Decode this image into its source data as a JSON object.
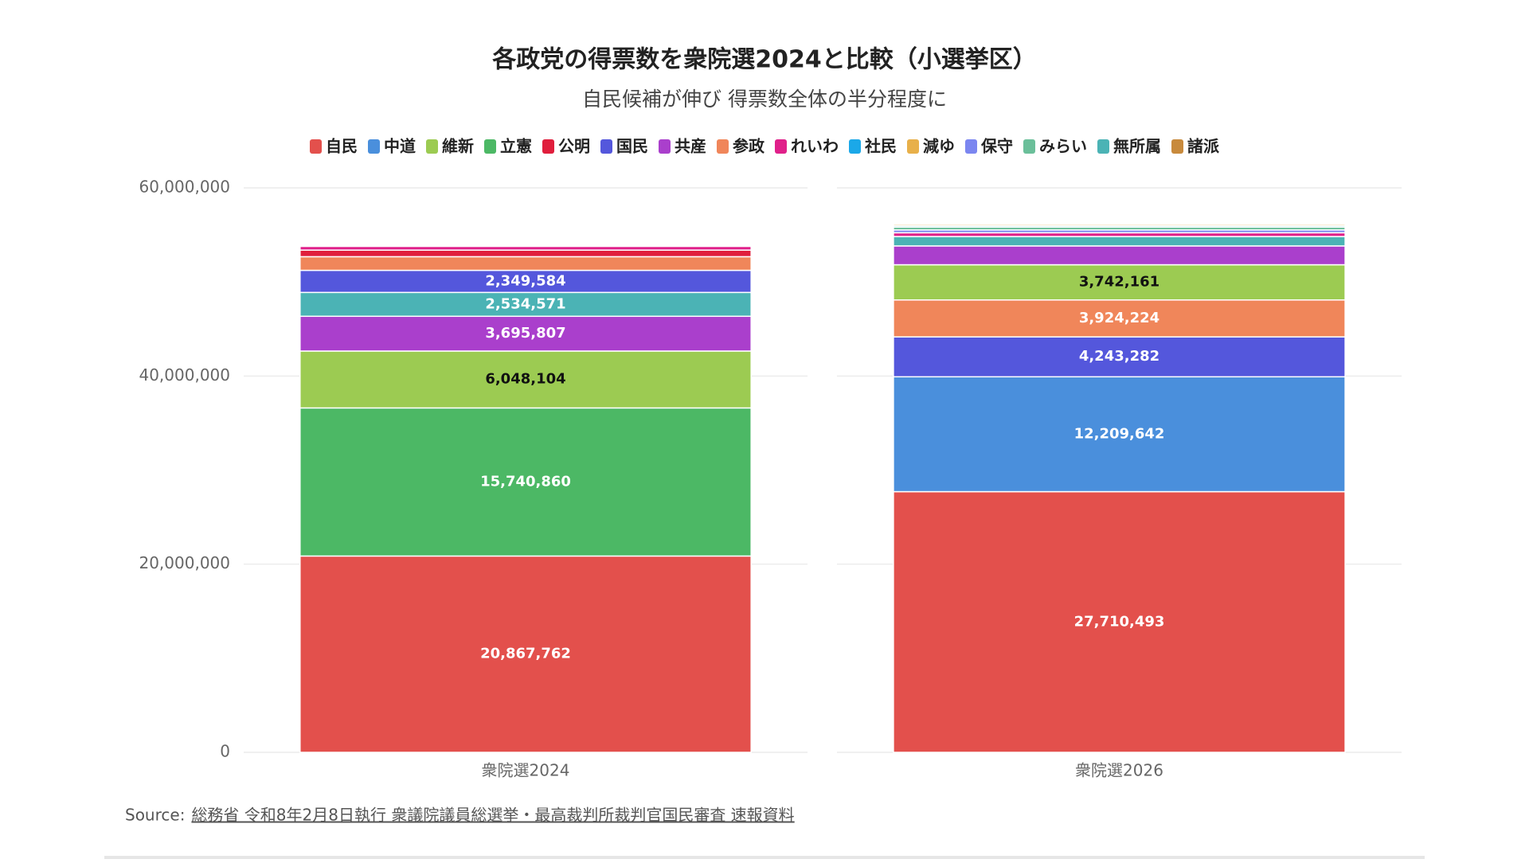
{
  "chart_data": {
    "type": "stacked_bar",
    "title": "各政党の得票数を衆院選2024と比較（小選挙区）",
    "subtitle": "自民候補が伸び 得票数全体の半分程度に",
    "categories": [
      "衆院選2024",
      "衆院選2026"
    ],
    "series": [
      {
        "name": "自民",
        "color": "#e3504c",
        "values": [
          20867762,
          27710493
        ],
        "value_labels": [
          "20,867,762",
          "27,710,493"
        ]
      },
      {
        "name": "中道",
        "color": "#4a8fdc",
        "values": [
          null,
          12209642
        ],
        "value_labels": [
          null,
          "12,209,642"
        ]
      },
      {
        "name": "維新",
        "color": "#9ccb52",
        "values": [
          6048104,
          3742161
        ],
        "value_labels": [
          "6,048,104",
          "3,742,161"
        ]
      },
      {
        "name": "立憲",
        "color": "#4cb865",
        "values": [
          15740860,
          null
        ],
        "value_labels": [
          "15,740,860",
          null
        ]
      },
      {
        "name": "公明",
        "color": "#e01e3c",
        "values": [
          700000,
          null
        ]
      },
      {
        "name": "国民",
        "color": "#5457dc",
        "values": [
          2349584,
          4243282
        ],
        "value_labels": [
          "2,349,584",
          "4,243,282"
        ]
      },
      {
        "name": "共産",
        "color": "#aa3fcc",
        "values": [
          3695807,
          2000000
        ],
        "value_labels": [
          "3,695,807",
          null
        ]
      },
      {
        "name": "参政",
        "color": "#f0865a",
        "values": [
          1450000,
          3924224
        ],
        "value_labels": [
          null,
          "3,924,224"
        ]
      },
      {
        "name": "れいわ",
        "color": "#e0208a",
        "values": [
          400000,
          400000
        ]
      },
      {
        "name": "社民",
        "color": "#1ba8e8",
        "values": [
          100000,
          150000
        ]
      },
      {
        "name": "減ゆ",
        "color": "#e8b04a",
        "values": [
          null,
          150000
        ]
      },
      {
        "name": "保守",
        "color": "#7b86f0",
        "values": [
          100000,
          300000
        ]
      },
      {
        "name": "みらい",
        "color": "#6bbf9a",
        "values": [
          null,
          300000
        ]
      },
      {
        "name": "無所属",
        "color": "#4bb3b5",
        "values": [
          2534571,
          1000000
        ],
        "value_labels": [
          "2,534,571",
          null
        ]
      },
      {
        "name": "諸派",
        "color": "#c88a3c",
        "values": [
          100000,
          100000
        ]
      }
    ],
    "ylim": [
      0,
      60000000
    ],
    "yticks": [
      0,
      {
        "value": 20000000,
        "label": "20,000,000"
      },
      {
        "value": 40000000,
        "label": "40,000,000"
      },
      {
        "value": 60000000,
        "label": "60,000,000"
      }
    ],
    "grid": true,
    "legend": "top",
    "source_label": "Source:",
    "source": "総務省 令和8年2月8日執行 衆議院議員総選挙・最高裁判所裁判官国民審査 速報資料"
  }
}
